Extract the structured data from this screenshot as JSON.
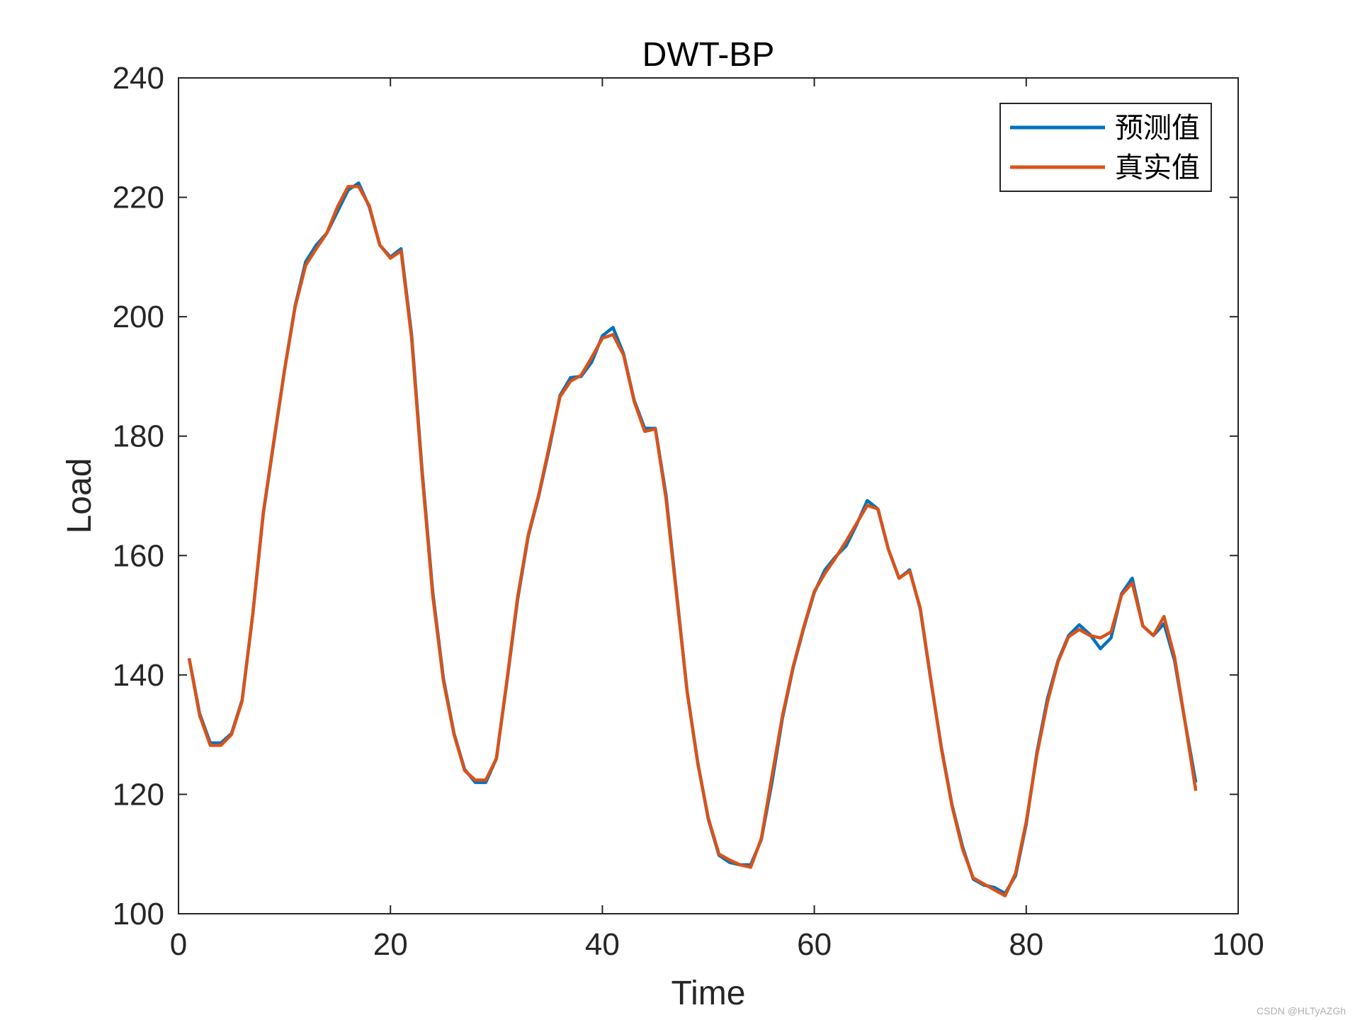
{
  "watermark": "CSDN @HLTyAZGh",
  "colors": {
    "predicted": "#0072BD",
    "actual": "#D95319",
    "axis": "#262626",
    "background": "#ffffff"
  },
  "chart_data": {
    "type": "line",
    "title": "DWT-BP",
    "xlabel": "Time",
    "ylabel": "Load",
    "xlim": [
      0,
      100
    ],
    "ylim": [
      100,
      240
    ],
    "xticks": [
      0,
      20,
      40,
      60,
      80,
      100
    ],
    "yticks": [
      100,
      120,
      140,
      160,
      180,
      200,
      220,
      240
    ],
    "grid": false,
    "legend_position": "top-right",
    "x": [
      1,
      2,
      3,
      4,
      5,
      6,
      7,
      8,
      9,
      10,
      11,
      12,
      13,
      14,
      15,
      16,
      17,
      18,
      19,
      20,
      21,
      22,
      23,
      24,
      25,
      26,
      27,
      28,
      29,
      30,
      31,
      32,
      33,
      34,
      35,
      36,
      37,
      38,
      39,
      40,
      41,
      42,
      43,
      44,
      45,
      46,
      47,
      48,
      49,
      50,
      51,
      52,
      53,
      54,
      55,
      56,
      57,
      58,
      59,
      60,
      61,
      62,
      63,
      64,
      65,
      66,
      67,
      68,
      69,
      70,
      71,
      72,
      73,
      74,
      75,
      76,
      77,
      78,
      79,
      80,
      81,
      82,
      83,
      84,
      85,
      86,
      87,
      88,
      89,
      90,
      91,
      92,
      93,
      94,
      95,
      96
    ],
    "series": [
      {
        "name": "预测值",
        "color": "#0072BD",
        "values": [
          142.8,
          133.5,
          128.6,
          128.6,
          130.2,
          135.8,
          150.0,
          167.0,
          179.0,
          191.0,
          201.8,
          209.2,
          212.0,
          214.0,
          217.6,
          221.2,
          222.4,
          218.4,
          212.0,
          210.0,
          211.4,
          197.0,
          174.0,
          153.8,
          139.4,
          130.2,
          124.2,
          122.0,
          122.0,
          126.0,
          139.0,
          152.6,
          163.2,
          170.0,
          178.0,
          186.8,
          189.8,
          190.0,
          192.4,
          196.8,
          198.2,
          193.8,
          186.0,
          181.3,
          181.3,
          170.2,
          153.8,
          137.2,
          125.4,
          115.8,
          109.8,
          108.6,
          108.2,
          108.2,
          112.4,
          122.0,
          132.8,
          141.2,
          147.8,
          153.8,
          157.6,
          159.8,
          161.6,
          165.2,
          169.2,
          167.8,
          161.0,
          156.2,
          157.6,
          151.0,
          139.0,
          127.8,
          118.2,
          111.2,
          105.8,
          104.8,
          104.4,
          103.4,
          106.4,
          115.0,
          127.0,
          136.0,
          142.4,
          146.6,
          148.4,
          146.8,
          144.4,
          146.2,
          153.6,
          156.2,
          148.2,
          146.6,
          148.6,
          142.4,
          132.0,
          122.0
        ]
      },
      {
        "name": "真实值",
        "color": "#D95319",
        "values": [
          142.8,
          133.2,
          128.2,
          128.2,
          130.0,
          135.6,
          150.0,
          167.2,
          179.2,
          191.0,
          201.6,
          208.6,
          211.4,
          214.0,
          218.4,
          221.8,
          221.8,
          218.6,
          212.0,
          209.8,
          211.0,
          196.4,
          173.4,
          153.2,
          139.0,
          130.0,
          124.0,
          122.4,
          122.4,
          126.0,
          139.2,
          153.0,
          163.4,
          170.2,
          178.4,
          186.6,
          189.2,
          190.2,
          193.2,
          196.4,
          197.0,
          193.6,
          185.8,
          180.8,
          181.2,
          169.6,
          153.4,
          137.2,
          125.2,
          116.0,
          110.0,
          109.0,
          108.2,
          107.8,
          112.6,
          123.0,
          133.2,
          141.4,
          148.0,
          154.0,
          157.0,
          159.6,
          162.4,
          165.4,
          168.4,
          167.8,
          161.0,
          156.2,
          157.4,
          151.2,
          139.2,
          127.6,
          118.0,
          110.8,
          106.0,
          105.0,
          104.0,
          103.0,
          106.8,
          115.4,
          126.6,
          135.4,
          142.2,
          146.4,
          147.6,
          146.6,
          146.2,
          147.2,
          153.4,
          155.4,
          148.2,
          146.6,
          149.8,
          143.0,
          132.0,
          120.6
        ]
      }
    ]
  }
}
